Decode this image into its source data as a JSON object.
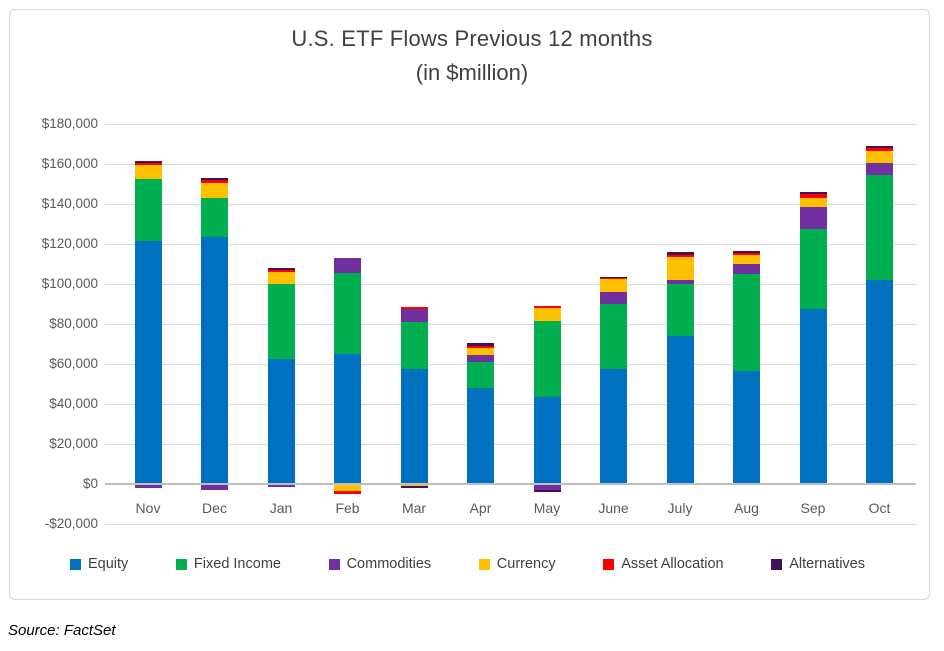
{
  "title": "U.S. ETF Flows Previous 12 months",
  "subtitle": "(in $million)",
  "source": "Source: FactSet",
  "chart_data": {
    "type": "bar",
    "stacked": true,
    "title": "U.S. ETF Flows Previous 12 months",
    "subtitle": "(in $million)",
    "xlabel": "",
    "ylabel": "",
    "grid": true,
    "legend_position": "bottom",
    "categories": [
      "Nov",
      "Dec",
      "Jan",
      "Feb",
      "Mar",
      "Apr",
      "May",
      "June",
      "July",
      "Aug",
      "Sep",
      "Oct"
    ],
    "series": [
      {
        "name": "Equity",
        "color": "#0070c0",
        "values": [
          121500,
          123500,
          62500,
          65000,
          57500,
          48000,
          43500,
          57500,
          74000,
          56500,
          87500,
          102000
        ]
      },
      {
        "name": "Fixed Income",
        "color": "#00b050",
        "values": [
          31000,
          19500,
          37700,
          40500,
          23500,
          13000,
          38000,
          32500,
          26000,
          48500,
          40000,
          52500
        ]
      },
      {
        "name": "Commodities",
        "color": "#7030a0",
        "values": [
          -2000,
          -3000,
          -1500,
          7500,
          6500,
          3300,
          -3000,
          6000,
          2200,
          5000,
          11000,
          6000
        ]
      },
      {
        "name": "Currency",
        "color": "#ffc000",
        "values": [
          7000,
          7500,
          5700,
          -3500,
          -1200,
          3700,
          6700,
          6500,
          11200,
          4500,
          4700,
          6000
        ]
      },
      {
        "name": "Asset Allocation",
        "color": "#ff0000",
        "values": [
          1200,
          1400,
          1200,
          -1300,
          1100,
          1000,
          800,
          600,
          1300,
          1000,
          1800,
          1500
        ]
      },
      {
        "name": "Alternatives",
        "color": "#421257",
        "values": [
          800,
          1000,
          800,
          0,
          -900,
          1300,
          -800,
          600,
          1300,
          1000,
          1000,
          1000
        ]
      }
    ],
    "y_axis": {
      "min": -20000,
      "max": 180000,
      "step": 20000,
      "tick_values": [
        180000,
        160000,
        140000,
        120000,
        100000,
        80000,
        60000,
        40000,
        20000,
        0,
        -20000
      ],
      "tick_labels": [
        "$180,000",
        "$160,000",
        "$140,000",
        "$120,000",
        "$100,000",
        "$80,000",
        "$60,000",
        "$40,000",
        "$20,000",
        "$0",
        "-$20,000"
      ]
    },
    "style": {
      "gridline_color": "#d9d9d9",
      "zero_line_color": "#bfbfbf",
      "axis_text_color": "#595959",
      "title_color": "#3f3f3f"
    }
  }
}
